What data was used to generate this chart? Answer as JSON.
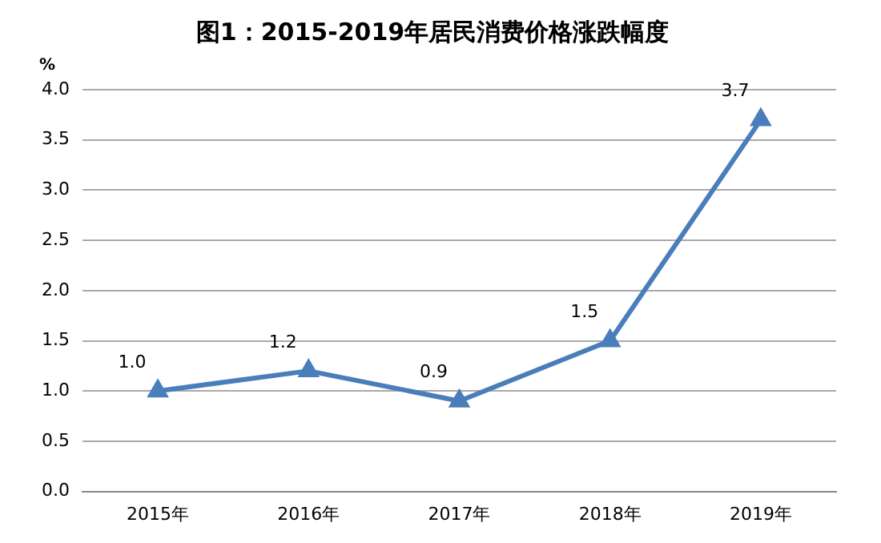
{
  "chart_data": {
    "type": "line",
    "title": "图1：2015-2019年居民消费价格涨跌幅度",
    "ylabel": "%",
    "categories": [
      "2015年",
      "2016年",
      "2017年",
      "2018年",
      "2019年"
    ],
    "series": [
      {
        "color": "#4a7ebb",
        "values": [
          1.0,
          1.2,
          0.9,
          1.5,
          3.7
        ],
        "value_labels": [
          "1.0",
          "1.2",
          "0.9",
          "1.5",
          "3.7"
        ]
      }
    ],
    "ylim": [
      0,
      4
    ],
    "yticks": [
      {
        "value": 0,
        "label": "0.0"
      },
      {
        "value": 0.5,
        "label": "0.5"
      },
      {
        "value": 1,
        "label": "1.0"
      },
      {
        "value": 1.5,
        "label": "1.5"
      },
      {
        "value": 2,
        "label": "2.0"
      },
      {
        "value": 2.5,
        "label": "2.5"
      },
      {
        "value": 3,
        "label": "3.0"
      },
      {
        "value": 3.5,
        "label": "3.5"
      },
      {
        "value": 4,
        "label": "4.0"
      }
    ],
    "grid": "y",
    "legend": false,
    "marker": "triangle",
    "line_style": "solid"
  }
}
